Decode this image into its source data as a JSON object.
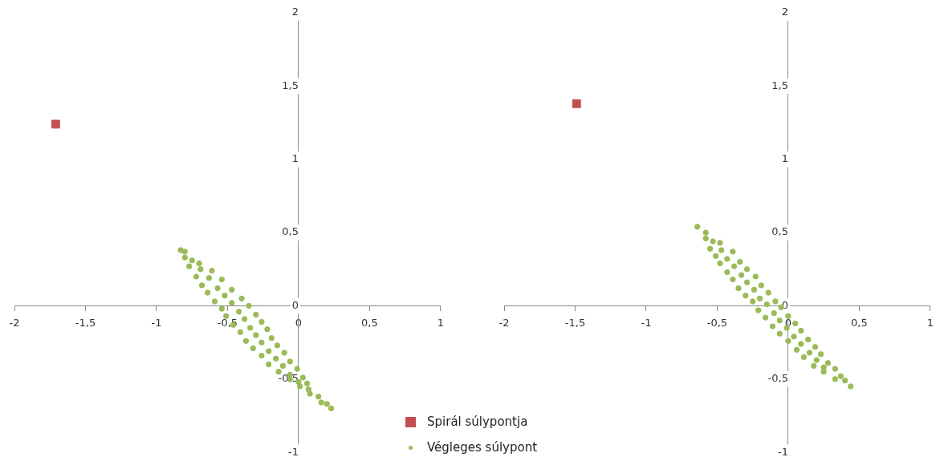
{
  "chart_data": [
    {
      "type": "scatter",
      "legend": "bottom right",
      "grid": false,
      "xlim": [
        -2,
        1
      ],
      "xticks": [
        -2,
        {
          "value": -1.5,
          "label": "-1,5"
        },
        -1,
        {
          "value": -0.5,
          "label": "-0,5"
        },
        0,
        {
          "value": 0.5,
          "label": "0,5"
        },
        1
      ],
      "ylim": [
        -1,
        2
      ],
      "yticks": [
        -1,
        {
          "value": -0.5,
          "label": "-0,5"
        },
        0,
        {
          "value": 0.5,
          "label": "0,5"
        },
        1,
        {
          "value": 1.5,
          "label": "1,5"
        },
        2
      ],
      "series": [
        {
          "name": "Spirál súlypontja",
          "color": "#c0504d",
          "marker": "square",
          "x": [
            -1.71
          ],
          "values": [
            1.24
          ]
        },
        {
          "name": "Végleges súlypont",
          "color": "#9bbb59",
          "marker": "circle",
          "x": [
            -0.83,
            -0.8,
            -0.8,
            -0.75,
            -0.7,
            -0.77,
            -0.69,
            -0.61,
            -0.72,
            -0.63,
            -0.54,
            -0.68,
            -0.57,
            -0.47,
            -0.64,
            -0.52,
            -0.4,
            -0.59,
            -0.47,
            -0.35,
            -0.54,
            -0.42,
            -0.3,
            -0.51,
            -0.38,
            -0.26,
            -0.46,
            -0.34,
            -0.22,
            -0.41,
            -0.3,
            -0.19,
            -0.37,
            -0.26,
            -0.15,
            -0.32,
            -0.21,
            -0.1,
            -0.26,
            -0.16,
            -0.06,
            -0.21,
            -0.11,
            -0.01,
            -0.14,
            -0.06,
            0.03,
            -0.06,
            0,
            0.06,
            0.01,
            0.07,
            0.08,
            0.14,
            0.16,
            0.2,
            0.23
          ],
          "values": [
            0.38,
            0.37,
            0.33,
            0.31,
            0.29,
            0.27,
            0.25,
            0.24,
            0.2,
            0.19,
            0.18,
            0.14,
            0.12,
            0.11,
            0.09,
            0.07,
            0.05,
            0.03,
            0.02,
            0,
            -0.02,
            -0.04,
            -0.06,
            -0.07,
            -0.09,
            -0.11,
            -0.13,
            -0.15,
            -0.16,
            -0.18,
            -0.2,
            -0.22,
            -0.24,
            -0.25,
            -0.27,
            -0.29,
            -0.31,
            -0.32,
            -0.34,
            -0.36,
            -0.38,
            -0.4,
            -0.41,
            -0.43,
            -0.45,
            -0.47,
            -0.49,
            -0.5,
            -0.52,
            -0.53,
            -0.55,
            -0.57,
            -0.6,
            -0.62,
            -0.66,
            -0.67,
            -0.7
          ]
        }
      ]
    },
    {
      "type": "scatter",
      "grid": false,
      "xlim": [
        -2,
        1
      ],
      "xticks": [
        -2,
        {
          "value": -1.5,
          "label": "-1,5"
        },
        -1,
        {
          "value": -0.5,
          "label": "-0,5"
        },
        0,
        {
          "value": 0.5,
          "label": "0,5"
        },
        1
      ],
      "ylim": [
        -1,
        2
      ],
      "yticks": [
        -1,
        {
          "value": -0.5,
          "label": "-0,5"
        },
        0,
        {
          "value": 0.5,
          "label": "0,5"
        },
        1,
        {
          "value": 1.5,
          "label": "1,5"
        },
        2
      ],
      "series": [
        {
          "color": "#c0504d",
          "marker": "square",
          "x": [
            -1.49
          ],
          "values": [
            1.38
          ]
        },
        {
          "color": "#9bbb59",
          "marker": "circle",
          "x": [
            -0.64,
            -0.58,
            -0.58,
            -0.53,
            -0.48,
            -0.55,
            -0.47,
            -0.39,
            -0.51,
            -0.43,
            -0.34,
            -0.48,
            -0.38,
            -0.29,
            -0.43,
            -0.33,
            -0.23,
            -0.39,
            -0.29,
            -0.19,
            -0.35,
            -0.24,
            -0.14,
            -0.3,
            -0.2,
            -0.09,
            -0.25,
            -0.15,
            -0.05,
            -0.21,
            -0.1,
            0,
            -0.16,
            -0.06,
            0.05,
            -0.11,
            -0.01,
            0.09,
            -0.06,
            0.04,
            0.14,
            0,
            0.09,
            0.19,
            0.06,
            0.15,
            0.23,
            0.11,
            0.2,
            0.28,
            0.18,
            0.25,
            0.33,
            0.25,
            0.37,
            0.33,
            0.4,
            0.44
          ],
          "values": [
            0.54,
            0.5,
            0.46,
            0.44,
            0.43,
            0.39,
            0.38,
            0.37,
            0.34,
            0.32,
            0.3,
            0.29,
            0.27,
            0.25,
            0.23,
            0.21,
            0.2,
            0.18,
            0.16,
            0.14,
            0.12,
            0.11,
            0.09,
            0.07,
            0.05,
            0.03,
            0.03,
            0.01,
            -0.01,
            -0.03,
            -0.05,
            -0.07,
            -0.08,
            -0.1,
            -0.12,
            -0.14,
            -0.15,
            -0.17,
            -0.19,
            -0.21,
            -0.23,
            -0.24,
            -0.26,
            -0.28,
            -0.3,
            -0.32,
            -0.33,
            -0.35,
            -0.37,
            -0.39,
            -0.41,
            -0.42,
            -0.43,
            -0.45,
            -0.48,
            -0.5,
            -0.51,
            -0.55
          ]
        }
      ]
    }
  ]
}
